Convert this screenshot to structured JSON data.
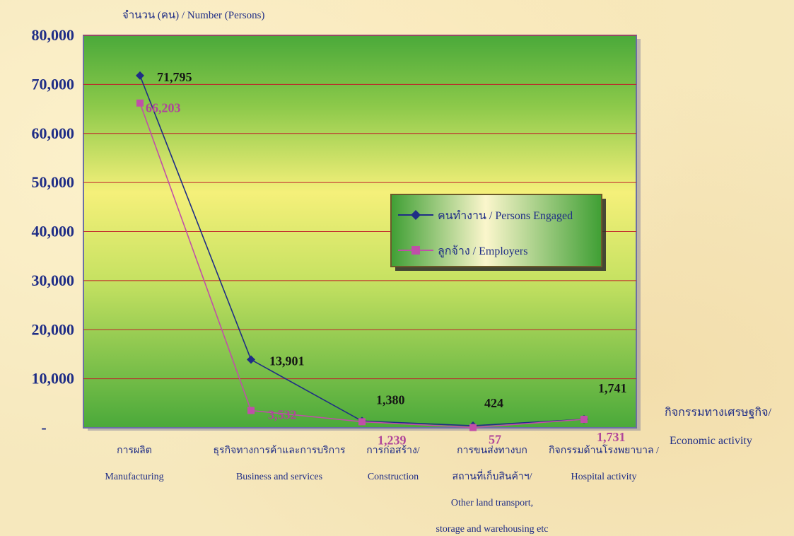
{
  "chart_data": {
    "type": "line",
    "ylabel": "จำนวน (คน) / Number  (Persons)",
    "xlabel_th": "กิจกรรมทางเศรษฐกิจ/",
    "xlabel_en": "Economic activity",
    "ylim": [
      0,
      80000
    ],
    "yticks": [
      "-",
      "10,000",
      "20,000",
      "30,000",
      "40,000",
      "50,000",
      "60,000",
      "70,000",
      "80,000"
    ],
    "categories": [
      {
        "lines": [
          "การผลิต",
          "Manufacturing"
        ]
      },
      {
        "lines": [
          "ธุรกิจทางการค้าและการบริการ",
          "Business and services"
        ]
      },
      {
        "lines": [
          "การก่อสร้าง/",
          "Construction"
        ]
      },
      {
        "lines": [
          "การขนส่งทางบก",
          "สถานที่เก็บสินค้าฯ/",
          "Other land transport,",
          "storage and warehousing etc"
        ]
      },
      {
        "lines": [
          "กิจกรรมด้านโรงพยาบาล /",
          "Hospital activity"
        ]
      }
    ],
    "series": [
      {
        "name": "คนทำงาน / Persons Engaged",
        "values": [
          71795,
          13901,
          1380,
          424,
          1741
        ],
        "labels": [
          "71,795",
          "13,901",
          "1,380",
          "424",
          "1,741"
        ],
        "color": "#1f2d86",
        "marker": "diamond"
      },
      {
        "name": "ลูกจ้าง / Employers",
        "values": [
          66203,
          3532,
          1239,
          57,
          1731
        ],
        "labels": [
          "66,203",
          "3,532",
          "1,239",
          "57",
          "1,731"
        ],
        "color": "#c04fa8",
        "marker": "square"
      }
    ],
    "legend_placement": "center-right",
    "grid": true,
    "gridline_color": "#c0202a",
    "plot_background": [
      "#4aa93a",
      "#f5f07a"
    ]
  }
}
